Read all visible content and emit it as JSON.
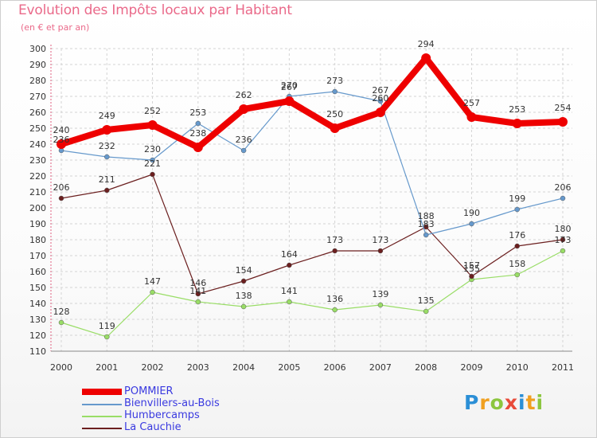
{
  "chart_data": {
    "type": "line",
    "title": "Evolution des Impôts locaux par Habitant",
    "subtitle": "(en € et par an)",
    "xlabel": "",
    "ylabel": "",
    "ylim": [
      110,
      300
    ],
    "ytick_step": 10,
    "grid": "horizontal dashed",
    "legend": "bottom-left",
    "categories": [
      "2000",
      "2001",
      "2002",
      "2003",
      "2004",
      "2005",
      "2006",
      "2007",
      "2008",
      "2009",
      "2010",
      "2011"
    ],
    "series": [
      {
        "name": "POMMIER",
        "color": "#ee0000",
        "values": [
          240,
          249,
          252,
          238,
          262,
          267,
          250,
          260,
          294,
          257,
          253,
          254
        ]
      },
      {
        "name": "Bienvillers-au-Bois",
        "color": "#6699cc",
        "values": [
          236,
          232,
          230,
          253,
          236,
          270,
          273,
          267,
          183,
          190,
          199,
          206
        ]
      },
      {
        "name": "Humbercamps",
        "color": "#99dd66",
        "values": [
          128,
          119,
          147,
          141,
          138,
          141,
          136,
          139,
          135,
          155,
          158,
          173
        ]
      },
      {
        "name": "La Cauchie",
        "color": "#6b1f1f",
        "values": [
          206,
          211,
          221,
          146,
          154,
          164,
          173,
          173,
          188,
          157,
          176,
          180
        ]
      }
    ]
  },
  "logo": {
    "text": "Proxiti"
  }
}
